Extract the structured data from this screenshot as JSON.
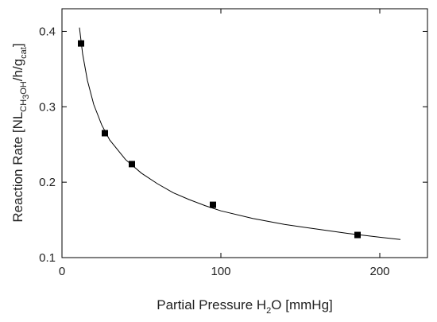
{
  "chart_data": {
    "type": "scatter",
    "title": "",
    "xlabel": {
      "main": "Partial Pressure H",
      "sub": "2",
      "tail": "O [mmHg]"
    },
    "ylabel": {
      "p1": "Reaction Rate [NL",
      "s1": "CH",
      "s2": "3",
      "s3": "OH",
      "p2": "/h/g",
      "s4": "cat",
      "p3": "]"
    },
    "xlim": [
      0,
      230
    ],
    "ylim": [
      0.1,
      0.43
    ],
    "xticks": [
      0,
      100,
      200
    ],
    "yticks": [
      0.1,
      0.2,
      0.3,
      0.4
    ],
    "xtick_labels": [
      "0",
      "100",
      "200"
    ],
    "ytick_labels": [
      "0.1",
      "0.2",
      "0.3",
      "0.4"
    ],
    "grid": false,
    "legend": "none",
    "series": [
      {
        "kind": "points",
        "marker": "square",
        "x": [
          12,
          27,
          44,
          95,
          186
        ],
        "y": [
          0.384,
          0.265,
          0.224,
          0.17,
          0.13
        ]
      },
      {
        "kind": "fit",
        "style": "line",
        "x": [
          11,
          13,
          16,
          20,
          25,
          30,
          40,
          50,
          60,
          70,
          80,
          90,
          100,
          120,
          140,
          160,
          180,
          200,
          213
        ],
        "y": [
          0.405,
          0.37,
          0.335,
          0.303,
          0.276,
          0.256,
          0.23,
          0.212,
          0.198,
          0.186,
          0.177,
          0.169,
          0.162,
          0.152,
          0.144,
          0.138,
          0.132,
          0.127,
          0.124
        ]
      }
    ],
    "colors": {
      "marker": "#000000",
      "line": "#000000",
      "frame": "#000000"
    }
  }
}
